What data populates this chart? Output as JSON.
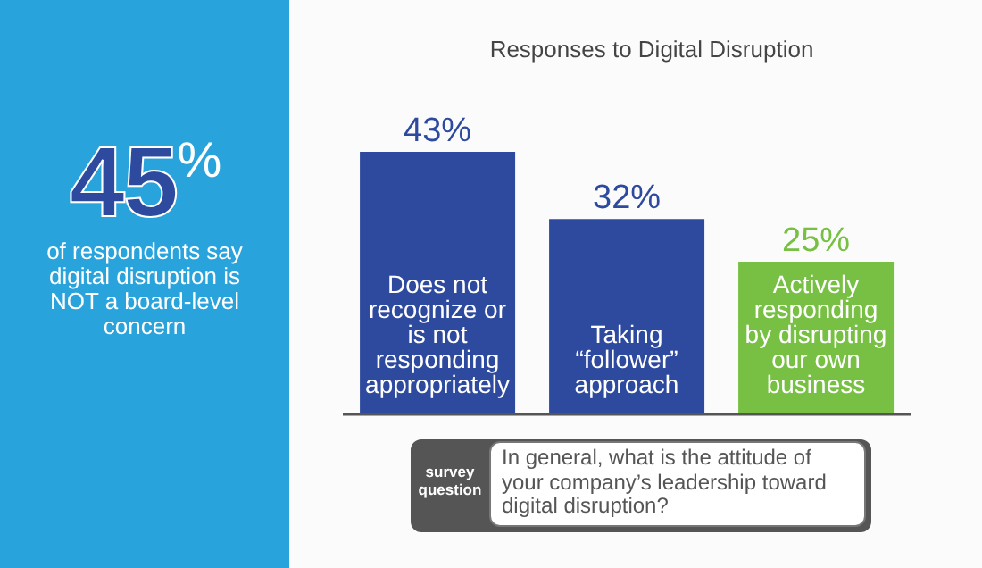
{
  "chart_data": {
    "type": "bar",
    "title": "Responses to Digital Disruption",
    "categories": [
      "Does not recognize or is not responding appropriately",
      "Taking “follower” approach",
      "Actively responding by disrupting our own business"
    ],
    "values": [
      43,
      32,
      25
    ],
    "colors": [
      "#2e4a9e",
      "#2e4a9e",
      "#77c043"
    ],
    "value_labels": [
      "43%",
      "32%",
      "25%"
    ],
    "annotations": [
      "45$^{%}$",
      "of respondents say digital disruption is NOT a board-level concern",
      "survey question",
      "In general, what is the attitude of your company’s leadership toward digital disruption?"
    ]
  }
}
